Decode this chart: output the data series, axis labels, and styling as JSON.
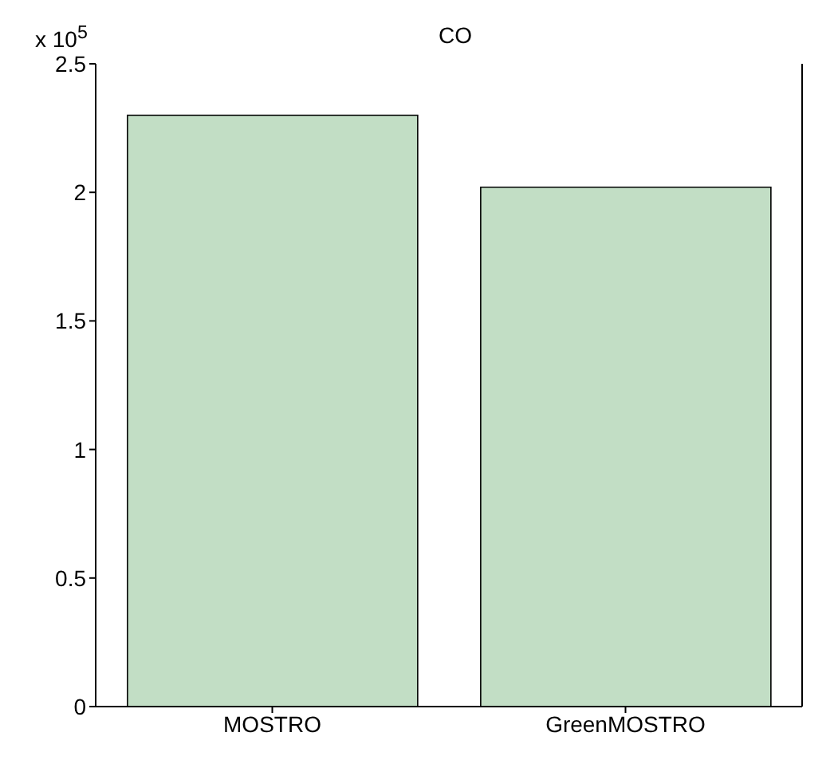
{
  "chart_data": {
    "type": "bar",
    "title": "CO",
    "categories": [
      "MOSTRO",
      "GreenMOSTRO"
    ],
    "values": [
      2.3,
      2.02
    ],
    "color": "#c2dec5",
    "ylim": [
      0,
      2.5
    ],
    "yticks": [
      0,
      0.5,
      1,
      1.5,
      2,
      2.5
    ],
    "annotations": [
      "x 10$^{5}$"
    ]
  }
}
